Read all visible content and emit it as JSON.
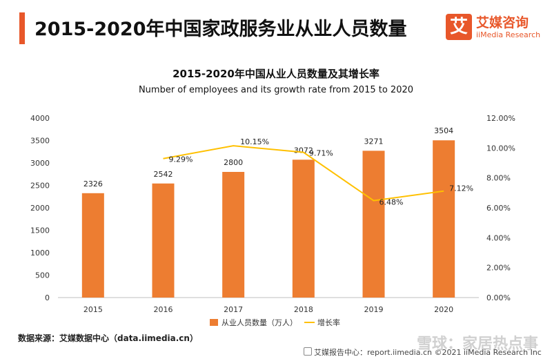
{
  "header": {
    "title": "2015-2020年中国家政服务业从业人员数量",
    "logo_glyph": "艾",
    "logo_cn": "艾媒咨询",
    "logo_en": "iiMedia Research"
  },
  "source_text": "数据来源：艾媒数据中心（data.iimedia.cn）",
  "footer_text": "艾媒报告中心：report.iimedia.cn  ©2021  iiMedia Research  Inc",
  "watermark_text": "雪球：家居热点事",
  "colors": {
    "bar": "#ed7d31",
    "line": "#ffc000",
    "accent": "#e8572a"
  },
  "chart_data": {
    "type": "bar",
    "title": "2015-2020年中国从业人员数量及其增长率",
    "subtitle": "Number of employees and its growth rate from 2015 to 2020",
    "categories": [
      "2015",
      "2016",
      "2017",
      "2018",
      "2019",
      "2020"
    ],
    "series": [
      {
        "name": "从业人员数量（万人）",
        "type": "bar",
        "axis": "left",
        "values": [
          2326,
          2542,
          2800,
          3072,
          3271,
          3504
        ]
      },
      {
        "name": "增长率",
        "type": "line",
        "axis": "right",
        "values": [
          null,
          9.29,
          10.15,
          9.71,
          6.48,
          7.12
        ]
      }
    ],
    "value_labels": {
      "bar": [
        "2326",
        "2542",
        "2800",
        "3072",
        "3271",
        "3504"
      ],
      "line": [
        "",
        "9.29%",
        "10.15%",
        "9.71%",
        "6.48%",
        "7.12%"
      ]
    },
    "ylim_left": [
      0,
      4000
    ],
    "ylim_right": [
      0,
      12
    ],
    "yticks_left": [
      "0",
      "500",
      "1000",
      "1500",
      "2000",
      "2500",
      "3000",
      "3500",
      "4000"
    ],
    "yticks_right": [
      "0.00%",
      "2.00%",
      "4.00%",
      "6.00%",
      "8.00%",
      "10.00%",
      "12.00%"
    ],
    "grid": false,
    "legend_position": "bottom"
  }
}
